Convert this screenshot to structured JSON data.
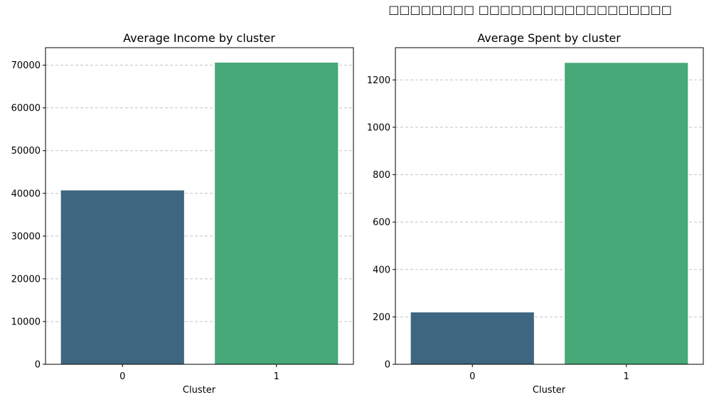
{
  "figure": {
    "suptitle": "□□□□□□□□ □□□□□□□□□□□□□□□□□□"
  },
  "chart_data": [
    {
      "type": "bar",
      "title": "Average Income by cluster",
      "xlabel": "Cluster",
      "ylabel": "",
      "categories": [
        "0",
        "1"
      ],
      "values": [
        40700,
        70600
      ],
      "colors": [
        "#3e6680",
        "#47a878"
      ],
      "ylim": [
        0,
        74100
      ],
      "yticks": [
        0,
        10000,
        20000,
        30000,
        40000,
        50000,
        60000,
        70000
      ],
      "grid": "y-dashed"
    },
    {
      "type": "bar",
      "title": "Average Spent by cluster",
      "xlabel": "Cluster",
      "ylabel": "",
      "categories": [
        "0",
        "1"
      ],
      "values": [
        219,
        1272
      ],
      "colors": [
        "#3e6680",
        "#47a878"
      ],
      "ylim": [
        0,
        1336
      ],
      "yticks": [
        0,
        200,
        400,
        600,
        800,
        1000,
        1200
      ],
      "grid": "y-dashed"
    }
  ]
}
